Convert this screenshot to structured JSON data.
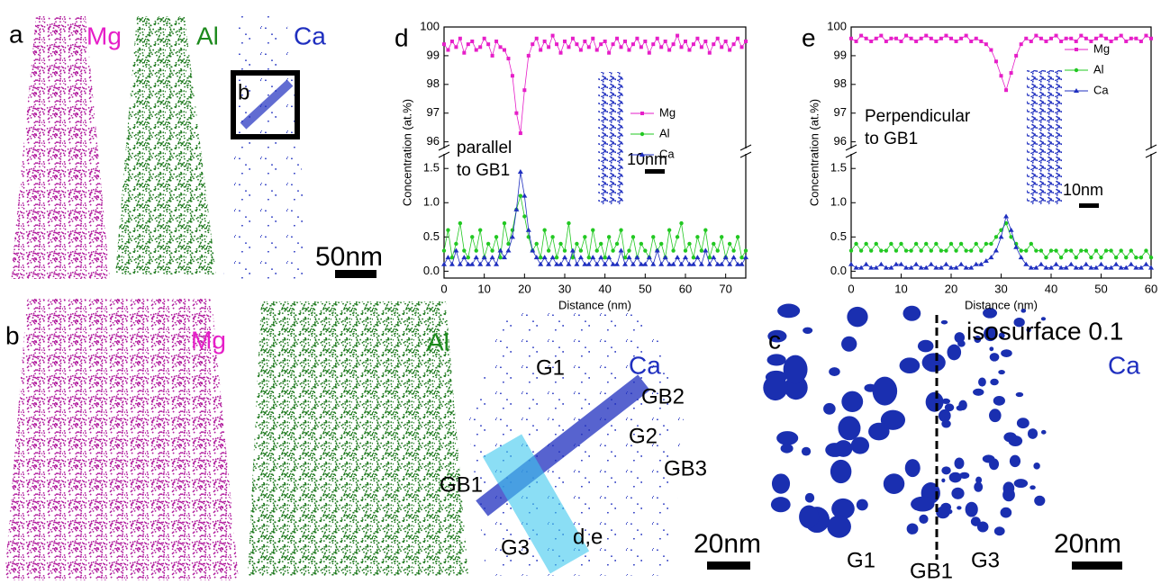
{
  "figure": {
    "panel_a": {
      "label": "a",
      "mg": "Mg",
      "al": "Al",
      "ca": "Ca",
      "box_label": "b",
      "scale": "50nm"
    },
    "panel_b": {
      "label": "b",
      "mg": "Mg",
      "al": "Al",
      "ca": "Ca",
      "g1": "G1",
      "gb2": "GB2",
      "g2": "G2",
      "gb3": "GB3",
      "gb1": "GB1",
      "g3": "G3",
      "roi": "d,e",
      "scale": "20nm"
    },
    "panel_c": {
      "label": "c",
      "title": "isosurface 0.1",
      "ca": "Ca",
      "g1": "G1",
      "gb1": "GB1",
      "g3": "G3",
      "scale": "20nm"
    }
  },
  "chart_data": [
    {
      "type": "line",
      "panel": "d",
      "y_label": "Concentration (at.%)",
      "x_label": "Distance (nm)",
      "annotation": [
        "parallel",
        "to GB1"
      ],
      "scale_bar": "10nm",
      "xlim": [
        0,
        75
      ],
      "xticks": [
        0,
        10,
        20,
        30,
        40,
        50,
        60,
        70
      ],
      "ylim": [
        -0.1,
        100
      ],
      "ybreak": [
        1.7,
        95.8
      ],
      "yticks": [
        {
          "value": 0,
          "label": "0.0"
        },
        0.5,
        {
          "value": 1,
          "label": "1.0"
        },
        1.5,
        96,
        97,
        98,
        99,
        100
      ],
      "legend": "upper right",
      "x": [
        0,
        1,
        2,
        3,
        4,
        5,
        6,
        7,
        8,
        9,
        10,
        11,
        12,
        13,
        14,
        15,
        16,
        17,
        18,
        19,
        20,
        21,
        22,
        23,
        24,
        25,
        26,
        27,
        28,
        29,
        30,
        31,
        32,
        33,
        34,
        35,
        36,
        37,
        38,
        39,
        40,
        41,
        42,
        43,
        44,
        45,
        46,
        47,
        48,
        49,
        50,
        51,
        52,
        53,
        54,
        55,
        56,
        57,
        58,
        59,
        60,
        61,
        62,
        63,
        64,
        65,
        66,
        67,
        68,
        69,
        70,
        71,
        72,
        73,
        74,
        75
      ],
      "series": [
        {
          "name": "Mg",
          "color": "#e61ec8",
          "marker": "square",
          "values": [
            99.4,
            99.2,
            99.5,
            99.3,
            99.6,
            99.1,
            99.4,
            99.5,
            99.2,
            99.3,
            99.6,
            99.4,
            99.0,
            99.5,
            99.3,
            99.2,
            98.9,
            98.3,
            97.0,
            96.3,
            97.8,
            99.0,
            99.4,
            99.6,
            99.2,
            99.5,
            99.3,
            99.7,
            99.4,
            99.1,
            99.5,
            99.3,
            99.6,
            99.4,
            99.2,
            99.5,
            99.3,
            99.6,
            99.2,
            99.4,
            99.5,
            99.1,
            99.4,
            99.6,
            99.3,
            99.5,
            99.2,
            99.4,
            99.6,
            99.3,
            99.5,
            99.1,
            99.4,
            99.6,
            99.3,
            99.5,
            99.2,
            99.4,
            99.7,
            99.3,
            99.5,
            99.2,
            99.4,
            99.6,
            99.3,
            99.5,
            99.1,
            99.4,
            99.6,
            99.3,
            99.5,
            99.2,
            99.4,
            99.6,
            99.3,
            99.5
          ]
        },
        {
          "name": "Al",
          "color": "#22c822",
          "marker": "circle",
          "values": [
            0.3,
            0.6,
            0.2,
            0.4,
            0.7,
            0.3,
            0.2,
            0.5,
            0.3,
            0.6,
            0.2,
            0.4,
            0.3,
            0.5,
            0.2,
            0.7,
            0.4,
            0.6,
            0.9,
            1.1,
            0.8,
            0.5,
            0.3,
            0.4,
            0.2,
            0.6,
            0.3,
            0.5,
            0.2,
            0.4,
            0.3,
            0.7,
            0.2,
            0.4,
            0.3,
            0.5,
            0.2,
            0.6,
            0.3,
            0.4,
            0.2,
            0.5,
            0.3,
            0.4,
            0.6,
            0.2,
            0.3,
            0.5,
            0.2,
            0.4,
            0.3,
            0.2,
            0.5,
            0.3,
            0.4,
            0.2,
            0.6,
            0.3,
            0.5,
            0.7,
            0.3,
            0.4,
            0.2,
            0.5,
            0.3,
            0.6,
            0.2,
            0.4,
            0.3,
            0.5,
            0.2,
            0.4,
            0.3,
            0.5,
            0.2,
            0.3
          ]
        },
        {
          "name": "Ca",
          "color": "#1f2fbf",
          "marker": "triangle",
          "values": [
            0.1,
            0.2,
            0.1,
            0.3,
            0.1,
            0.2,
            0.1,
            0.1,
            0.2,
            0.1,
            0.2,
            0.1,
            0.2,
            0.1,
            0.3,
            0.2,
            0.3,
            0.5,
            0.9,
            1.45,
            1.1,
            0.6,
            0.3,
            0.2,
            0.1,
            0.2,
            0.1,
            0.2,
            0.1,
            0.1,
            0.2,
            0.1,
            0.3,
            0.1,
            0.2,
            0.1,
            0.1,
            0.2,
            0.1,
            0.2,
            0.1,
            0.2,
            0.1,
            0.1,
            0.3,
            0.1,
            0.2,
            0.1,
            0.2,
            0.1,
            0.1,
            0.2,
            0.1,
            0.3,
            0.1,
            0.2,
            0.1,
            0.1,
            0.2,
            0.1,
            0.2,
            0.1,
            0.1,
            0.2,
            0.1,
            0.3,
            0.1,
            0.2,
            0.1,
            0.1,
            0.2,
            0.1,
            0.2,
            0.1,
            0.1,
            0.2
          ]
        }
      ]
    },
    {
      "type": "line",
      "panel": "e",
      "y_label": "Concentration (at.%)",
      "x_label": "Distance (nm)",
      "annotation": [
        "Perpendicular",
        "to GB1"
      ],
      "scale_bar": "10nm",
      "xlim": [
        0,
        60
      ],
      "xticks": [
        0,
        10,
        20,
        30,
        40,
        50,
        60
      ],
      "ylim": [
        -0.1,
        100
      ],
      "ybreak": [
        1.7,
        95.8
      ],
      "yticks": [
        {
          "value": 0,
          "label": "0.0"
        },
        0.5,
        {
          "value": 1,
          "label": "1.0"
        },
        1.5,
        96,
        97,
        98,
        99,
        100
      ],
      "legend": "upper right",
      "x": [
        0,
        1,
        2,
        3,
        4,
        5,
        6,
        7,
        8,
        9,
        10,
        11,
        12,
        13,
        14,
        15,
        16,
        17,
        18,
        19,
        20,
        21,
        22,
        23,
        24,
        25,
        26,
        27,
        28,
        29,
        30,
        31,
        32,
        33,
        34,
        35,
        36,
        37,
        38,
        39,
        40,
        41,
        42,
        43,
        44,
        45,
        46,
        47,
        48,
        49,
        50,
        51,
        52,
        53,
        54,
        55,
        56,
        57,
        58,
        59,
        60
      ],
      "series": [
        {
          "name": "Mg",
          "color": "#e61ec8",
          "marker": "square",
          "values": [
            99.6,
            99.5,
            99.7,
            99.6,
            99.5,
            99.6,
            99.7,
            99.5,
            99.6,
            99.6,
            99.5,
            99.7,
            99.6,
            99.5,
            99.6,
            99.7,
            99.6,
            99.5,
            99.6,
            99.7,
            99.6,
            99.5,
            99.6,
            99.7,
            99.5,
            99.6,
            99.5,
            99.4,
            99.2,
            98.8,
            98.3,
            97.8,
            98.4,
            99.0,
            99.4,
            99.6,
            99.5,
            99.7,
            99.6,
            99.5,
            99.6,
            99.7,
            99.5,
            99.6,
            99.6,
            99.5,
            99.7,
            99.6,
            99.5,
            99.6,
            99.7,
            99.6,
            99.5,
            99.6,
            99.7,
            99.5,
            99.6,
            99.6,
            99.5,
            99.7,
            99.6
          ]
        },
        {
          "name": "Al",
          "color": "#22c822",
          "marker": "circle",
          "values": [
            0.3,
            0.4,
            0.3,
            0.4,
            0.3,
            0.4,
            0.3,
            0.3,
            0.4,
            0.3,
            0.4,
            0.3,
            0.3,
            0.4,
            0.3,
            0.4,
            0.3,
            0.4,
            0.3,
            0.3,
            0.4,
            0.3,
            0.4,
            0.3,
            0.3,
            0.4,
            0.3,
            0.4,
            0.4,
            0.5,
            0.6,
            0.7,
            0.5,
            0.4,
            0.3,
            0.3,
            0.4,
            0.3,
            0.3,
            0.2,
            0.3,
            0.3,
            0.2,
            0.3,
            0.3,
            0.2,
            0.3,
            0.3,
            0.2,
            0.3,
            0.2,
            0.3,
            0.3,
            0.2,
            0.3,
            0.2,
            0.3,
            0.2,
            0.2,
            0.3,
            0.2
          ]
        },
        {
          "name": "Ca",
          "color": "#1f2fbf",
          "marker": "triangle",
          "values": [
            0.1,
            0.05,
            0.05,
            0.1,
            0.05,
            0.05,
            0.1,
            0.05,
            0.05,
            0.1,
            0.1,
            0.05,
            0.05,
            0.1,
            0.05,
            0.05,
            0.1,
            0.05,
            0.05,
            0.1,
            0.05,
            0.05,
            0.1,
            0.05,
            0.05,
            0.1,
            0.1,
            0.15,
            0.2,
            0.3,
            0.5,
            0.8,
            0.6,
            0.35,
            0.2,
            0.1,
            0.05,
            0.05,
            0.1,
            0.05,
            0.05,
            0.1,
            0.05,
            0.05,
            0.1,
            0.05,
            0.05,
            0.1,
            0.05,
            0.05,
            0.1,
            0.05,
            0.05,
            0.1,
            0.05,
            0.05,
            0.1,
            0.05,
            0.05,
            0.1,
            0.05
          ]
        }
      ]
    }
  ]
}
